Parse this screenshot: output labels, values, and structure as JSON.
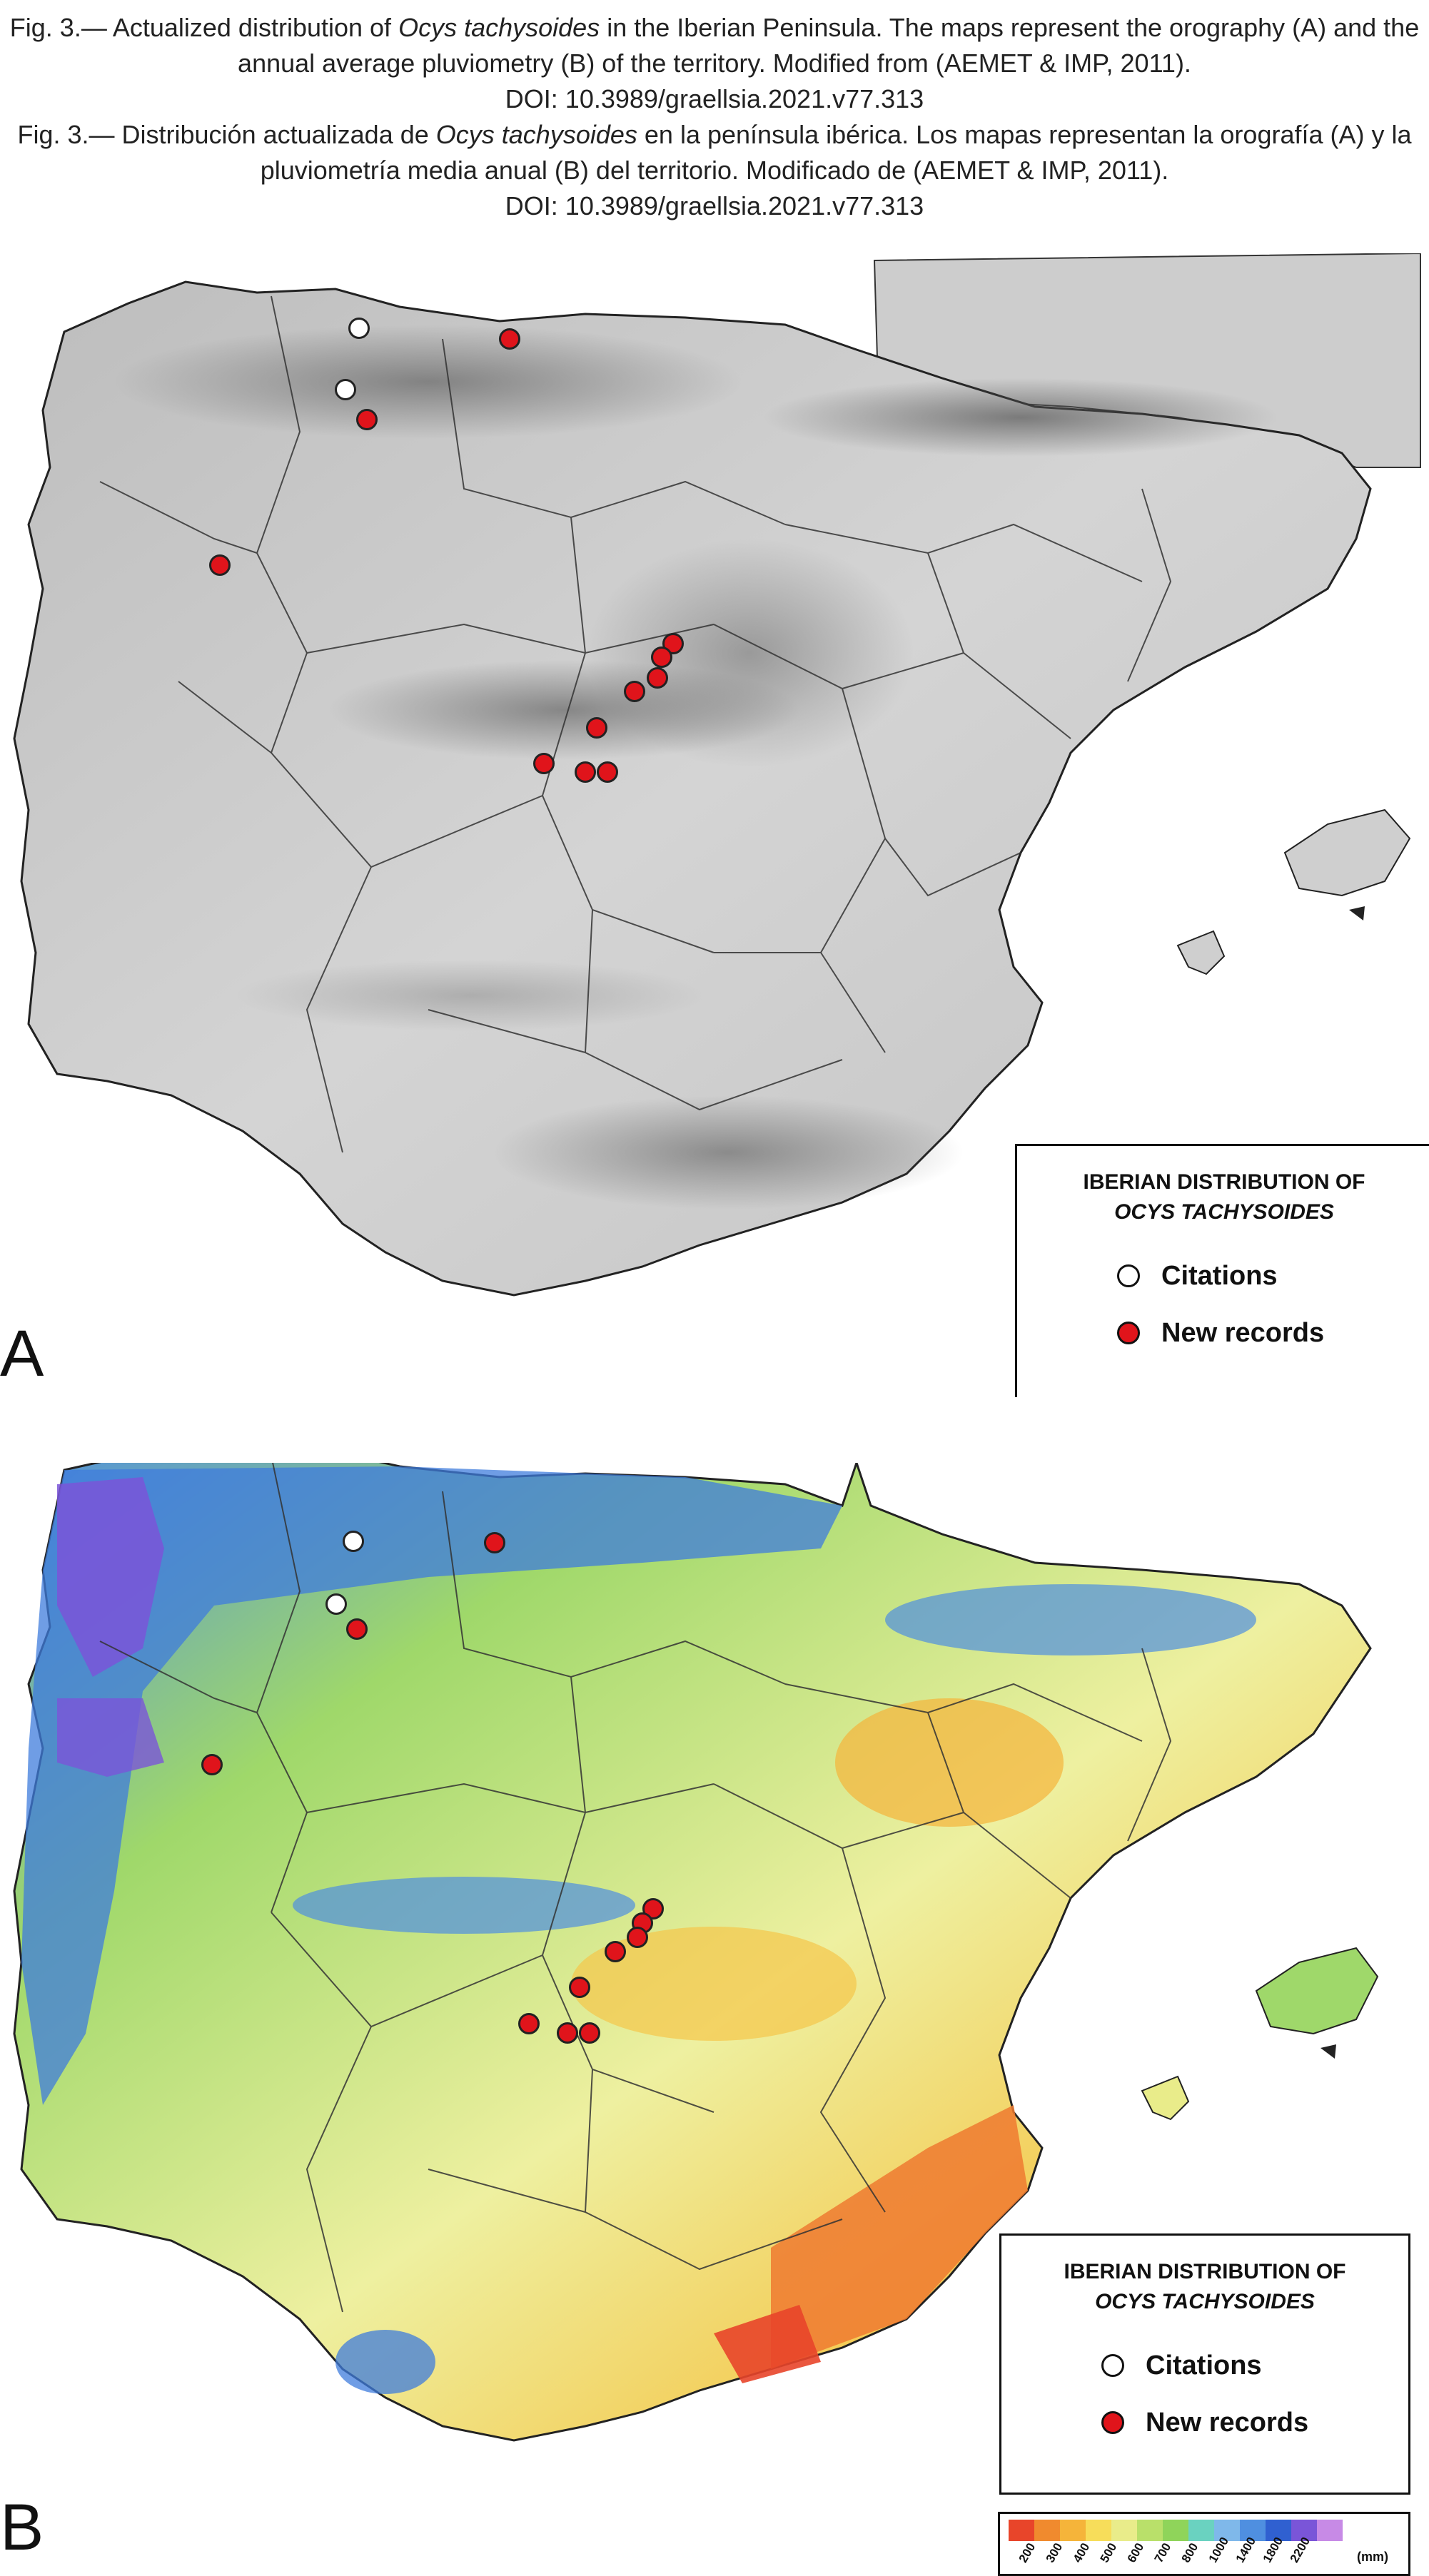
{
  "caption": {
    "en_prefix": "Fig. 3.— Actualized distribution of ",
    "en_species": "Ocys tachysoides",
    "en_suffix": " in the Iberian Peninsula. The maps represent the orography (A) and the annual average pluviometry (B) of the territory. Modified from (AEMET & IMP, 2011).",
    "en_doi": "DOI: 10.3989/graellsia.2021.v77.313",
    "es_prefix": "Fig. 3.— Distribución actualizada de ",
    "es_species": "Ocys tachysoides",
    "es_suffix": " en la península ibérica. Los mapas representan la orografía (A) y la pluviometría media anual (B) del territorio. Modificado de (AEMET & IMP, 2011).",
    "es_doi": "DOI: 10.3989/graellsia.2021.v77.313"
  },
  "panels": {
    "a": {
      "letter": "A"
    },
    "b": {
      "letter": "B"
    }
  },
  "legend": {
    "title_line1": "IBERIAN DISTRIBUTION OF",
    "title_line2": "OCYS TACHYSOIDES",
    "citations": "Citations",
    "new_records": "New records"
  },
  "rainfall_scale": {
    "labels": [
      "200",
      "300",
      "400",
      "500",
      "600",
      "700",
      "800",
      "1000",
      "1400",
      "1800",
      "2200"
    ],
    "unit": "(mm)",
    "colors": [
      "#e8452a",
      "#f08a2e",
      "#f5b43a",
      "#f7dd5a",
      "#e9ec8a",
      "#b9e06a",
      "#8fd45a",
      "#6ad2c0",
      "#7fb8ea",
      "#4f8fe0",
      "#3060d0",
      "#7a55d8",
      "#c78ae6"
    ]
  },
  "colors": {
    "citation_fill": "#ffffff",
    "record_fill": "#e0141b",
    "relief_base": "#c9c9c9"
  }
}
